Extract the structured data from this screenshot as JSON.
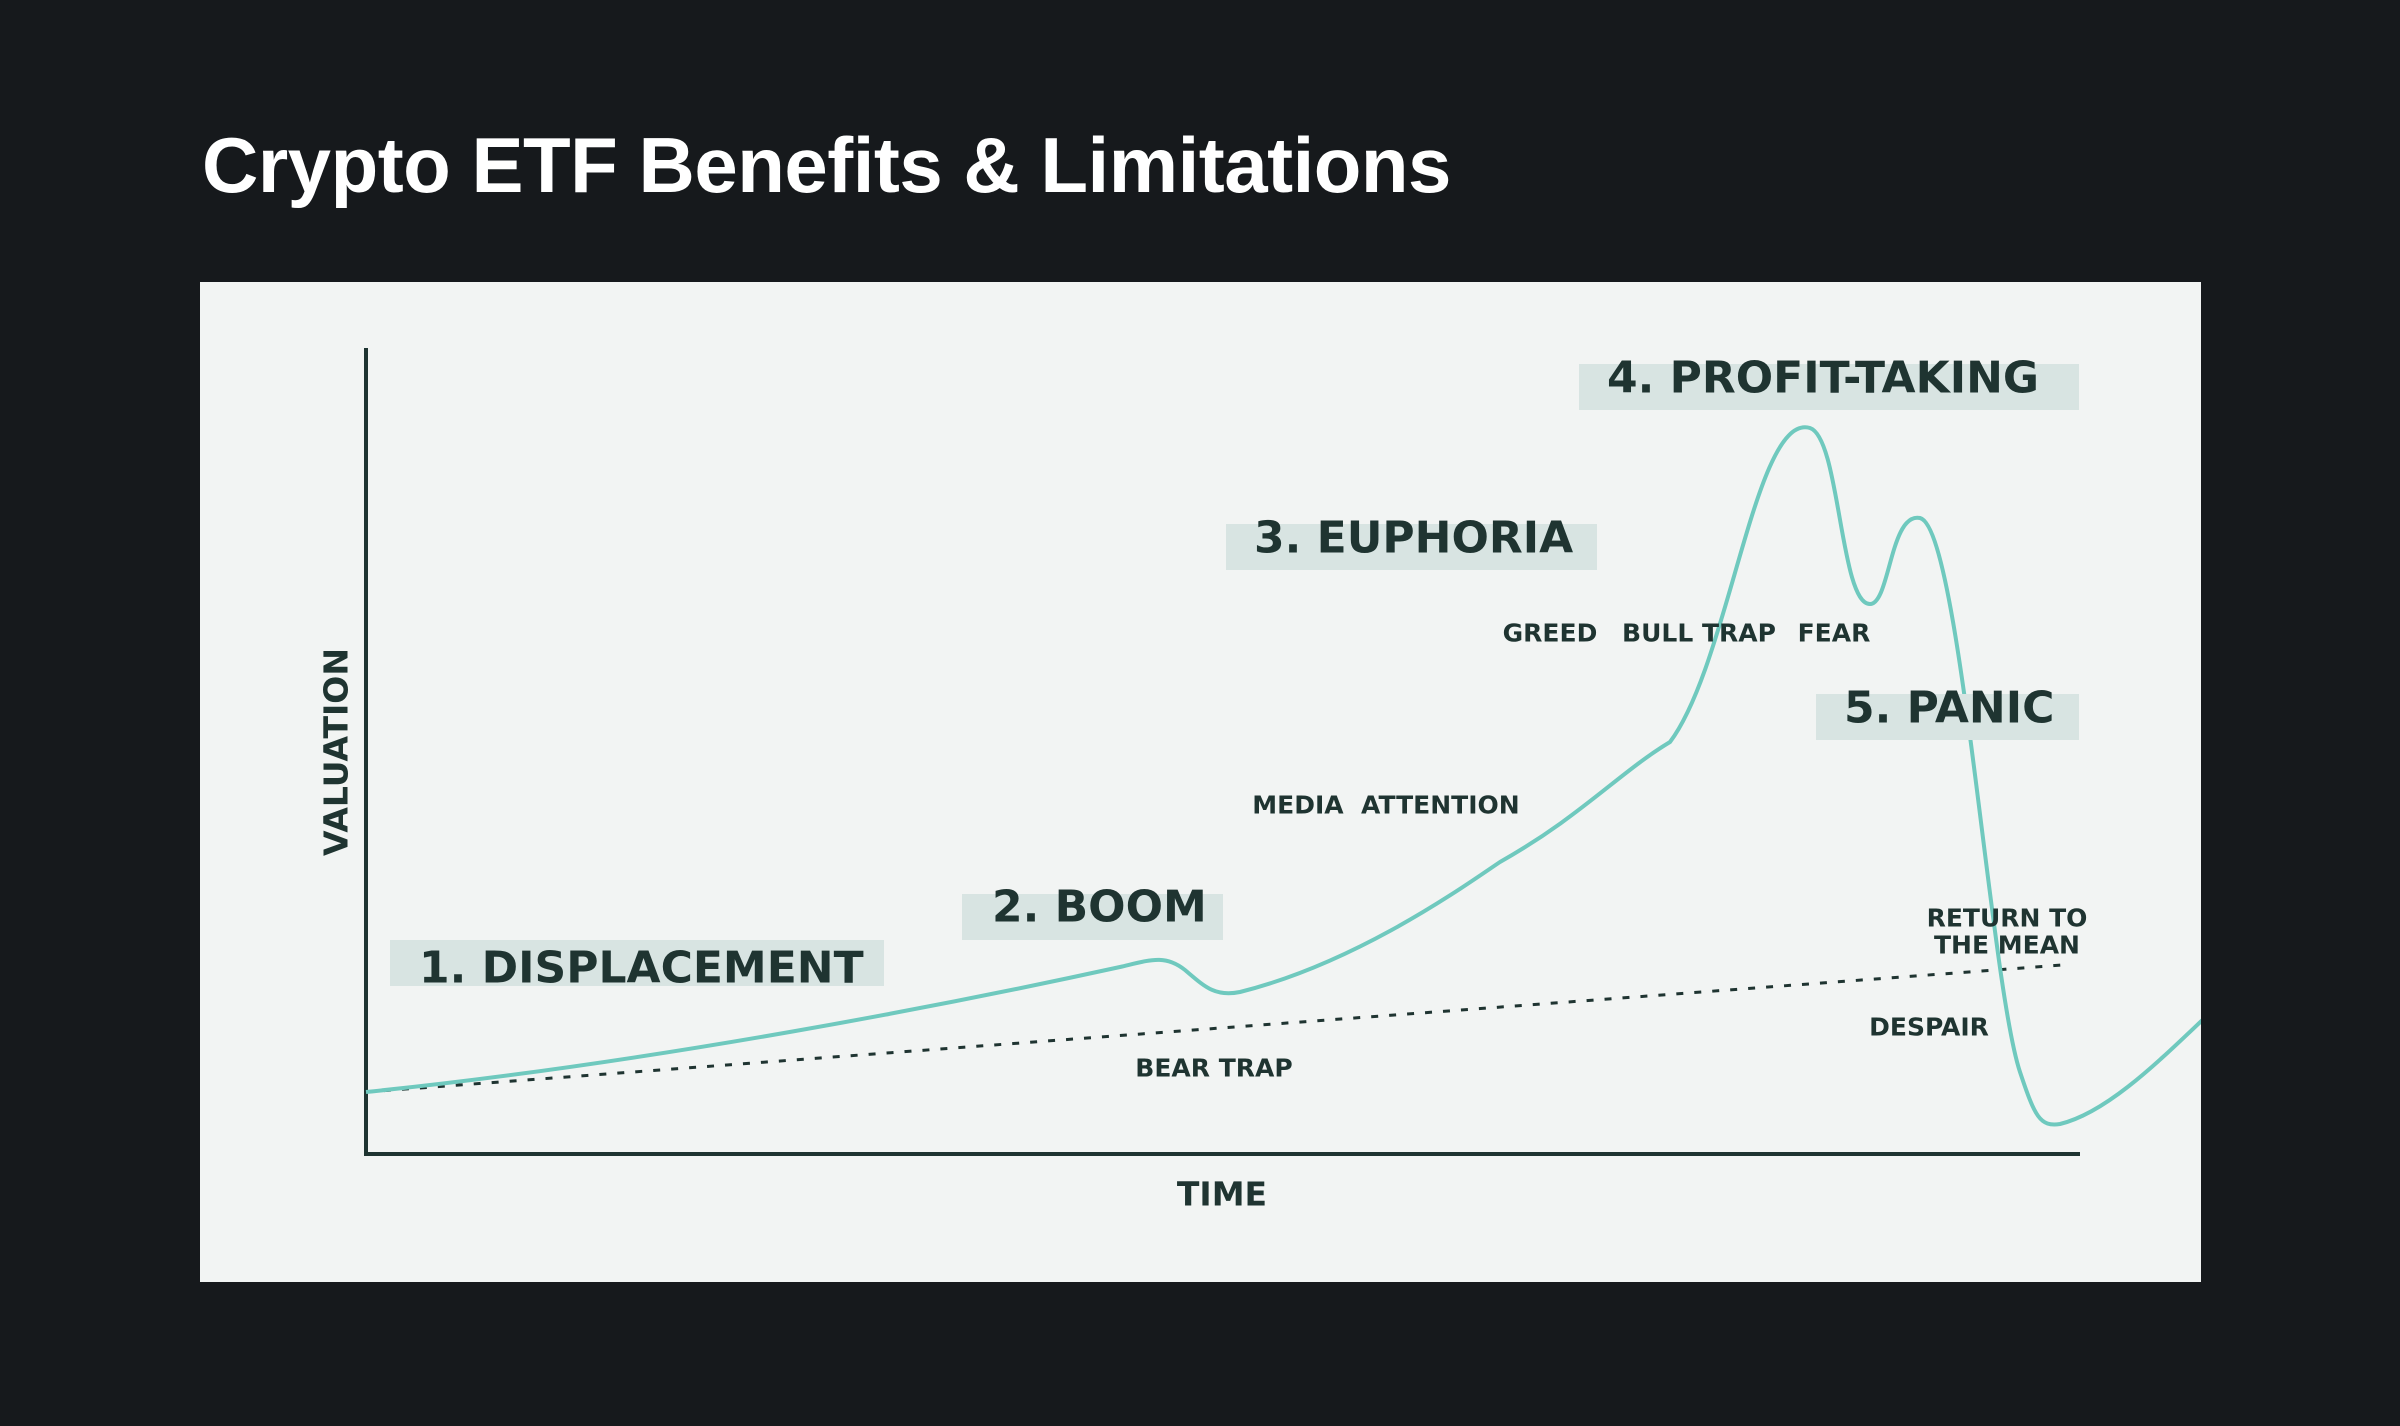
{
  "page": {
    "title": "Crypto ETF Benefits & Limitations"
  },
  "diagram": {
    "axes": {
      "x": "TIME",
      "y": "VALUATION"
    },
    "phases": [
      {
        "id": "displacement",
        "label": "1. DISPLACEMENT"
      },
      {
        "id": "boom",
        "label": "2. BOOM"
      },
      {
        "id": "euphoria",
        "label": "3. EUPHORIA"
      },
      {
        "id": "profit-taking",
        "label": "4. PROFIT-TAKING"
      },
      {
        "id": "panic",
        "label": "5. PANIC"
      }
    ],
    "annotations": {
      "bear_trap": "BEAR TRAP",
      "media_attention": "MEDIA  ATTENTION",
      "greed": "GREED",
      "bull_trap": "BULL TRAP",
      "fear": "FEAR",
      "despair": "DESPAIR",
      "return_line1": "RETURN TO",
      "return_line2": "THE MEAN"
    },
    "colors": {
      "curve": "#6fc9be",
      "axes": "#1f3431",
      "label_band": "#d8e4e2",
      "panel": "#f2f4f3",
      "page": "#16191c"
    }
  }
}
